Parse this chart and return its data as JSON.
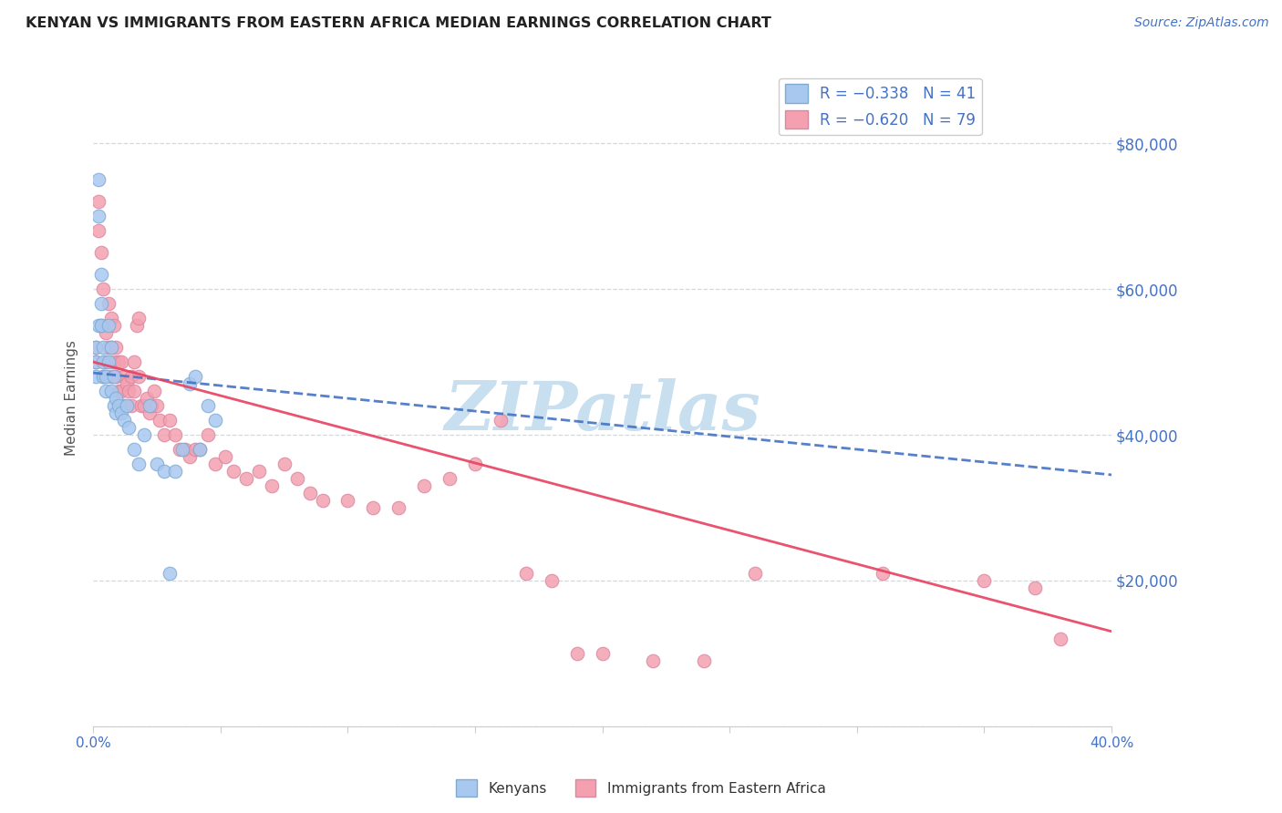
{
  "title": "KENYAN VS IMMIGRANTS FROM EASTERN AFRICA MEDIAN EARNINGS CORRELATION CHART",
  "source": "Source: ZipAtlas.com",
  "ylabel": "Median Earnings",
  "xlim": [
    0.0,
    0.4
  ],
  "ylim": [
    0,
    90000
  ],
  "yticks": [
    0,
    20000,
    40000,
    60000,
    80000
  ],
  "ytick_labels": [
    "",
    "$20,000",
    "$40,000",
    "$60,000",
    "$80,000"
  ],
  "xtick_labels": [
    "0.0%",
    "",
    "",
    "",
    "",
    "",
    "",
    "",
    "40.0%"
  ],
  "xticks": [
    0.0,
    0.05,
    0.1,
    0.15,
    0.2,
    0.25,
    0.3,
    0.35,
    0.4
  ],
  "kenyans_x": [
    0.001,
    0.001,
    0.001,
    0.002,
    0.002,
    0.002,
    0.003,
    0.003,
    0.003,
    0.004,
    0.004,
    0.004,
    0.005,
    0.005,
    0.006,
    0.006,
    0.007,
    0.007,
    0.008,
    0.008,
    0.009,
    0.009,
    0.01,
    0.011,
    0.012,
    0.013,
    0.014,
    0.016,
    0.018,
    0.02,
    0.022,
    0.025,
    0.028,
    0.03,
    0.032,
    0.035,
    0.038,
    0.04,
    0.042,
    0.045,
    0.048
  ],
  "kenyans_y": [
    50000,
    48000,
    52000,
    75000,
    70000,
    55000,
    62000,
    58000,
    55000,
    52000,
    50000,
    48000,
    48000,
    46000,
    55000,
    50000,
    52000,
    46000,
    48000,
    44000,
    45000,
    43000,
    44000,
    43000,
    42000,
    44000,
    41000,
    38000,
    36000,
    40000,
    44000,
    36000,
    35000,
    21000,
    35000,
    38000,
    47000,
    48000,
    38000,
    44000,
    42000
  ],
  "immigrants_x": [
    0.001,
    0.001,
    0.002,
    0.002,
    0.003,
    0.003,
    0.004,
    0.004,
    0.005,
    0.005,
    0.006,
    0.006,
    0.007,
    0.007,
    0.007,
    0.008,
    0.008,
    0.009,
    0.009,
    0.01,
    0.01,
    0.011,
    0.011,
    0.012,
    0.012,
    0.013,
    0.014,
    0.015,
    0.015,
    0.016,
    0.016,
    0.017,
    0.018,
    0.018,
    0.019,
    0.02,
    0.021,
    0.022,
    0.023,
    0.024,
    0.025,
    0.026,
    0.028,
    0.03,
    0.032,
    0.034,
    0.036,
    0.038,
    0.04,
    0.042,
    0.045,
    0.048,
    0.052,
    0.055,
    0.06,
    0.065,
    0.07,
    0.075,
    0.08,
    0.085,
    0.09,
    0.1,
    0.11,
    0.12,
    0.13,
    0.14,
    0.15,
    0.16,
    0.17,
    0.18,
    0.19,
    0.2,
    0.22,
    0.24,
    0.26,
    0.31,
    0.35,
    0.37,
    0.38
  ],
  "immigrants_y": [
    50000,
    52000,
    68000,
    72000,
    65000,
    55000,
    60000,
    48000,
    54000,
    50000,
    58000,
    52000,
    56000,
    52000,
    48000,
    55000,
    50000,
    52000,
    48000,
    50000,
    46000,
    50000,
    46000,
    48000,
    44000,
    47000,
    46000,
    48000,
    44000,
    50000,
    46000,
    55000,
    56000,
    48000,
    44000,
    44000,
    45000,
    43000,
    44000,
    46000,
    44000,
    42000,
    40000,
    42000,
    40000,
    38000,
    38000,
    37000,
    38000,
    38000,
    40000,
    36000,
    37000,
    35000,
    34000,
    35000,
    33000,
    36000,
    34000,
    32000,
    31000,
    31000,
    30000,
    30000,
    33000,
    34000,
    36000,
    42000,
    21000,
    20000,
    10000,
    10000,
    9000,
    9000,
    21000,
    21000,
    20000,
    19000,
    12000
  ],
  "kenyan_color": "#a8c8f0",
  "immigrant_color": "#f4a0b0",
  "kenyan_line_color": "#4472c4",
  "immigrant_line_color": "#e84060",
  "kenyan_dot_edge": "#80aad0",
  "immigrant_dot_edge": "#d888a0",
  "watermark": "ZIPatlas",
  "watermark_color": "#c8dff0",
  "tick_color": "#4472c4",
  "grid_color": "#d0d8e8",
  "background_color": "#ffffff"
}
